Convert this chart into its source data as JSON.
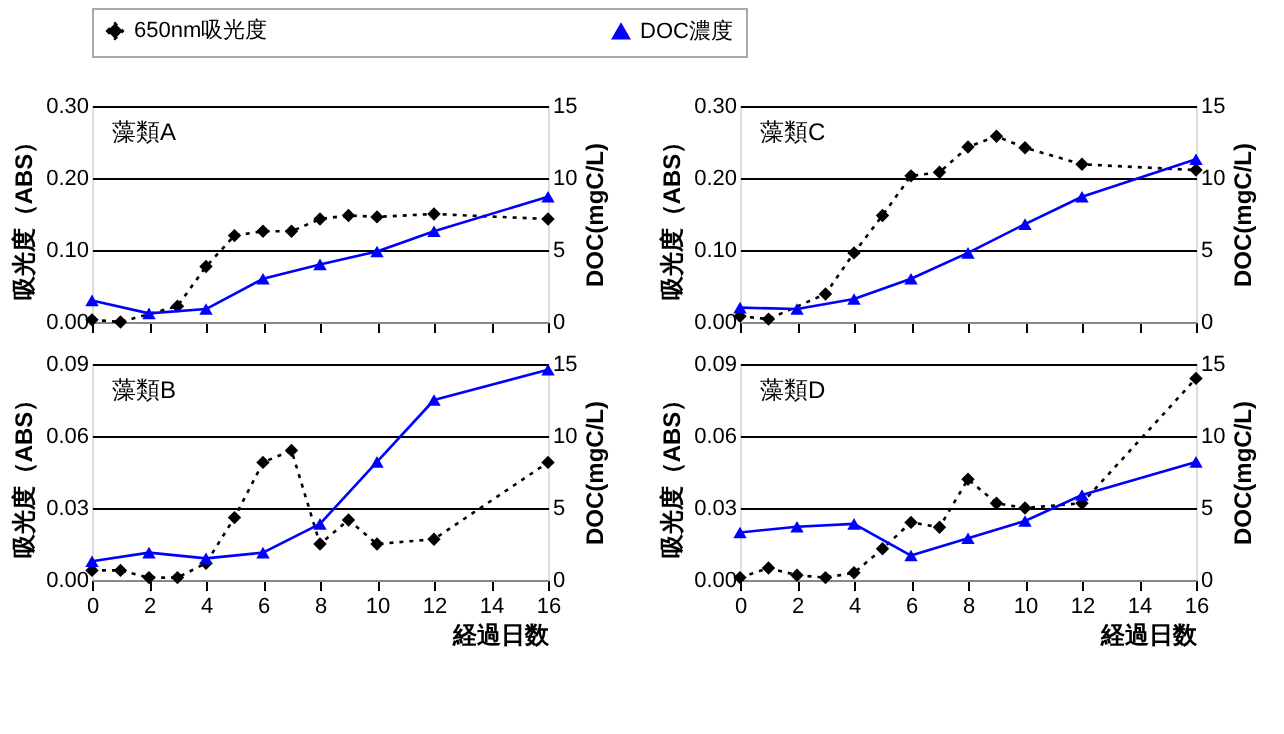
{
  "chart_data": [
    {
      "type": "line",
      "title": "藻類A",
      "ylabel": "吸光度（ABS）",
      "y2label": "DOC(mgC/L)",
      "xlim": [
        0,
        16
      ],
      "xticks": [
        0,
        2,
        4,
        6,
        8,
        10,
        12,
        14,
        16
      ],
      "ylim": [
        0,
        0.3
      ],
      "yticks": [
        {
          "value": 0,
          "label": "0.00"
        },
        {
          "value": 0.1,
          "label": "0.10"
        },
        {
          "value": 0.2,
          "label": "0.20"
        },
        {
          "value": 0.3,
          "label": "0.30"
        }
      ],
      "y2lim": [
        0,
        15
      ],
      "y2ticks": [
        0,
        5,
        10,
        15
      ],
      "grid": "y",
      "tick_labels": "y",
      "legend": "top",
      "series": [
        {
          "name": "650nm吸光度",
          "color": "#000000",
          "marker": "diamond",
          "line_style": "dotted",
          "x": [
            0,
            1,
            3,
            4,
            5,
            6,
            7,
            8,
            9,
            10,
            12,
            16
          ],
          "values": [
            0.003,
            0.0,
            0.022,
            0.077,
            0.12,
            0.126,
            0.126,
            0.143,
            0.148,
            0.146,
            0.15,
            0.143
          ]
        },
        {
          "name": "DOC濃度",
          "color": "#0000ff",
          "marker": "triangle",
          "line_style": "solid",
          "axis": "y2",
          "x": [
            0,
            2,
            4,
            6,
            8,
            10,
            12,
            16
          ],
          "values": [
            1.5,
            0.6,
            0.9,
            3.0,
            4.0,
            4.9,
            6.3,
            8.7
          ]
        }
      ]
    },
    {
      "type": "line",
      "title": "藻類C",
      "ylabel": "吸光度（ABS）",
      "y2label": "DOC(mgC/L)",
      "xlim": [
        0,
        16
      ],
      "xticks": [
        0,
        2,
        4,
        6,
        8,
        10,
        12,
        14,
        16
      ],
      "ylim": [
        0,
        0.3
      ],
      "yticks": [
        {
          "value": 0,
          "label": "0.00"
        },
        {
          "value": 0.1,
          "label": "0.10"
        },
        {
          "value": 0.2,
          "label": "0.20"
        },
        {
          "value": 0.3,
          "label": "0.30"
        }
      ],
      "y2lim": [
        0,
        15
      ],
      "y2ticks": [
        0,
        5,
        10,
        15
      ],
      "grid": "y",
      "tick_labels": "y",
      "series": [
        {
          "name": "650nm吸光度",
          "color": "#000000",
          "marker": "diamond",
          "line_style": "dotted",
          "x": [
            0,
            1,
            3,
            4,
            5,
            6,
            7,
            8,
            9,
            10,
            12,
            16
          ],
          "values": [
            0.008,
            0.004,
            0.039,
            0.096,
            0.148,
            0.203,
            0.208,
            0.243,
            0.258,
            0.242,
            0.219,
            0.211
          ]
        },
        {
          "name": "DOC濃度",
          "color": "#0000ff",
          "marker": "triangle",
          "line_style": "solid",
          "axis": "y2",
          "x": [
            0,
            2,
            4,
            6,
            8,
            10,
            12,
            16
          ],
          "values": [
            1.0,
            0.9,
            1.6,
            3.0,
            4.8,
            6.8,
            8.7,
            11.3
          ]
        }
      ]
    },
    {
      "type": "line",
      "title": "藻類B",
      "xlabel": "経過日数",
      "ylabel": "吸光度（ABS）",
      "y2label": "DOC(mgC/L)",
      "xlim": [
        0,
        16
      ],
      "xticks": [
        0,
        2,
        4,
        6,
        8,
        10,
        12,
        14,
        16
      ],
      "ylim": [
        0,
        0.09
      ],
      "yticks": [
        {
          "value": 0,
          "label": "0.00"
        },
        {
          "value": 0.03,
          "label": "0.03"
        },
        {
          "value": 0.06,
          "label": "0.06"
        },
        {
          "value": 0.09,
          "label": "0.09"
        }
      ],
      "y2lim": [
        0,
        15
      ],
      "y2ticks": [
        0,
        5,
        10,
        15
      ],
      "grid": "y",
      "series": [
        {
          "name": "650nm吸光度",
          "color": "#000000",
          "marker": "diamond",
          "line_style": "dotted",
          "x": [
            0,
            1,
            2,
            3,
            4,
            5,
            6,
            7,
            8,
            9,
            10,
            12,
            16
          ],
          "values": [
            0.004,
            0.004,
            0.001,
            0.001,
            0.007,
            0.026,
            0.049,
            0.054,
            0.015,
            0.025,
            0.015,
            0.017,
            0.049
          ]
        },
        {
          "name": "DOC濃度",
          "color": "#0000ff",
          "marker": "triangle",
          "line_style": "solid",
          "axis": "y2",
          "x": [
            0,
            2,
            4,
            6,
            8,
            10,
            12,
            16
          ],
          "values": [
            1.3,
            1.9,
            1.5,
            1.9,
            3.9,
            8.2,
            12.5,
            14.6
          ]
        }
      ]
    },
    {
      "type": "line",
      "title": "藻類D",
      "xlabel": "経過日数",
      "ylabel": "吸光度（ABS）",
      "y2label": "DOC(mgC/L)",
      "xlim": [
        0,
        16
      ],
      "xticks": [
        0,
        2,
        4,
        6,
        8,
        10,
        12,
        14,
        16
      ],
      "ylim": [
        0,
        0.09
      ],
      "yticks": [
        {
          "value": 0,
          "label": "0.00"
        },
        {
          "value": 0.03,
          "label": "0.03"
        },
        {
          "value": 0.06,
          "label": "0.06"
        },
        {
          "value": 0.09,
          "label": "0.09"
        }
      ],
      "y2lim": [
        0,
        15
      ],
      "y2ticks": [
        0,
        5,
        10,
        15
      ],
      "grid": "y",
      "series": [
        {
          "name": "650nm吸光度",
          "color": "#000000",
          "marker": "diamond",
          "line_style": "dotted",
          "x": [
            0,
            1,
            2,
            3,
            4,
            5,
            6,
            7,
            8,
            9,
            10,
            12,
            16
          ],
          "values": [
            0.001,
            0.005,
            0.002,
            0.001,
            0.003,
            0.013,
            0.024,
            0.022,
            0.042,
            0.032,
            0.03,
            0.032,
            0.084
          ]
        },
        {
          "name": "DOC濃度",
          "color": "#0000ff",
          "marker": "triangle",
          "line_style": "solid",
          "axis": "y2",
          "x": [
            0,
            2,
            4,
            6,
            8,
            10,
            12,
            16
          ],
          "values": [
            3.3,
            3.7,
            3.9,
            1.7,
            2.9,
            4.1,
            5.9,
            8.2
          ]
        }
      ]
    }
  ]
}
